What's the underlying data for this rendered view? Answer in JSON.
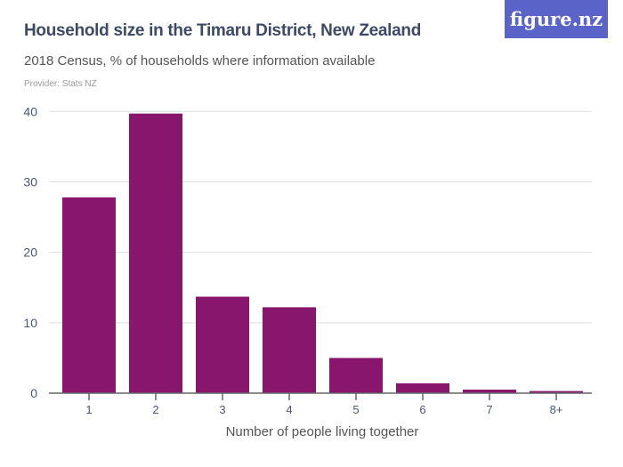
{
  "header": {
    "title": "Household size in the Timaru District, New Zealand",
    "subtitle": "2018 Census, % of households where information available",
    "provider": "Provider: Stats NZ",
    "logo": "figure.nz"
  },
  "chart_data": {
    "type": "bar",
    "title": "Household size in the Timaru District, New Zealand",
    "subtitle": "2018 Census, % of households where information available",
    "xlabel": "Number of people living together",
    "ylabel": "",
    "categories": [
      "1",
      "2",
      "3",
      "4",
      "5",
      "6",
      "7",
      "8+"
    ],
    "values": [
      27.8,
      39.7,
      13.7,
      12.2,
      5.0,
      1.4,
      0.5,
      0.3
    ],
    "ylim": [
      0,
      40
    ],
    "yticks": [
      0,
      10,
      20,
      30,
      40
    ],
    "grid": true,
    "legend": "none",
    "colors": {
      "bar": "#88166d",
      "grid": "#dddddd",
      "axis": "#666666"
    }
  }
}
